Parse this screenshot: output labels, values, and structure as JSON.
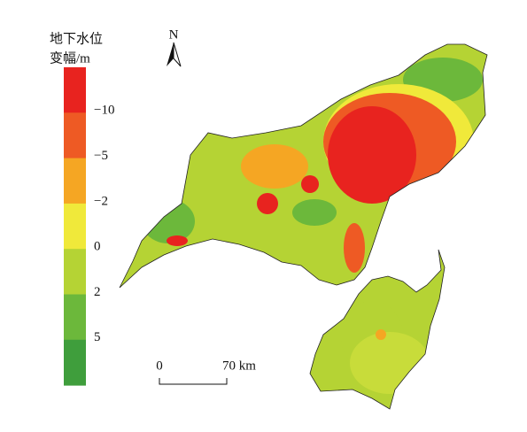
{
  "legend": {
    "title_lines": [
      "地下水位",
      "变幅/m"
    ],
    "colors": [
      "#e8231f",
      "#ee5a24",
      "#f5a623",
      "#f0e93a",
      "#b5d334",
      "#6cb83b",
      "#3f9e3c"
    ],
    "breaks": [
      "−10",
      "−5",
      "−2",
      "0",
      "2",
      "5"
    ]
  },
  "north": "N",
  "scale_bar": {
    "start": "0",
    "end": "70 km"
  }
}
